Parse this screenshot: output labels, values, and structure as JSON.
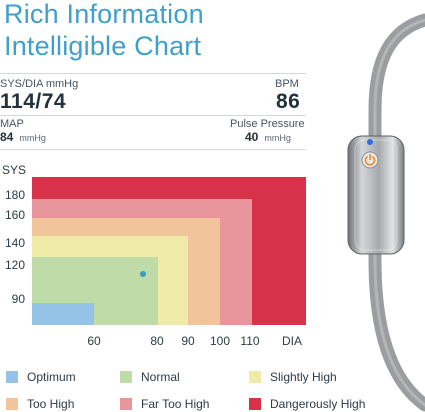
{
  "headline": {
    "line1": "Rich Information",
    "line2": "Intelligible Chart"
  },
  "readouts": {
    "sys_dia_label": "SYS/DIA mmHg",
    "sys_dia_value": "114/74",
    "bpm_label": "BPM",
    "bpm_value": "86",
    "map_label": "MAP",
    "map_value": "84",
    "map_unit": "mmHg",
    "pp_label": "Pulse Pressure",
    "pp_value": "40",
    "pp_unit": "mmHg"
  },
  "chart_data": {
    "type": "heatmap",
    "title": "",
    "ylabel": "SYS",
    "xlabel": "DIA",
    "y_ticks": [
      "180",
      "160",
      "140",
      "120",
      "90"
    ],
    "x_ticks": [
      "60",
      "80",
      "90",
      "100",
      "110"
    ],
    "zones": [
      {
        "name": "Dangerously High",
        "color": "#d6334a"
      },
      {
        "name": "Far Too High",
        "color": "#e8959b"
      },
      {
        "name": "Too High",
        "color": "#f2c49c"
      },
      {
        "name": "Slightly High",
        "color": "#efeaa8"
      },
      {
        "name": "Normal",
        "color": "#bfdca8"
      },
      {
        "name": "Optimum",
        "color": "#95c3e8"
      }
    ],
    "point": {
      "sys": 114,
      "dia": 74,
      "color": "#3a9bc2"
    }
  },
  "legend": [
    {
      "label": "Optimum",
      "color": "#95c3e8"
    },
    {
      "label": "Normal",
      "color": "#bfdca8"
    },
    {
      "label": "Slightly High",
      "color": "#efeaa8"
    },
    {
      "label": "Too High",
      "color": "#f2c49c"
    },
    {
      "label": "Far Too High",
      "color": "#e8959b"
    },
    {
      "label": "Dangerously High",
      "color": "#d6334a"
    }
  ],
  "device": {
    "indicator_color": "#2f6fe0",
    "icon": "power-icon"
  }
}
